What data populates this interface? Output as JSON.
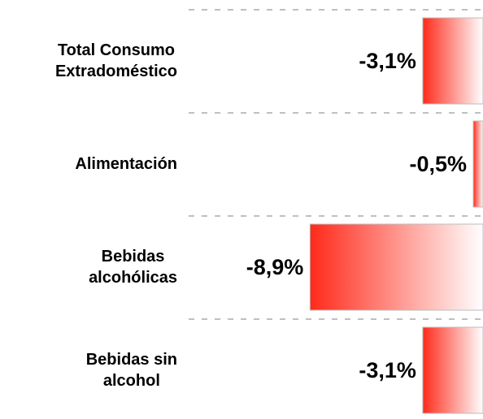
{
  "chart_data": {
    "type": "barh",
    "categories": [
      "Total Consumo\nExtradoméstico",
      "Alimentación",
      "Bebidas\nalcohólicas",
      "Bebidas sin\nalcohol"
    ],
    "values": [
      -3.1,
      -0.5,
      -8.9,
      -3.1
    ],
    "value_labels": [
      "-3,1%",
      "-0,5%",
      "-8,9%",
      "-3,1%"
    ],
    "color": "#ff2a1a",
    "xlim": [
      -10,
      0
    ]
  }
}
